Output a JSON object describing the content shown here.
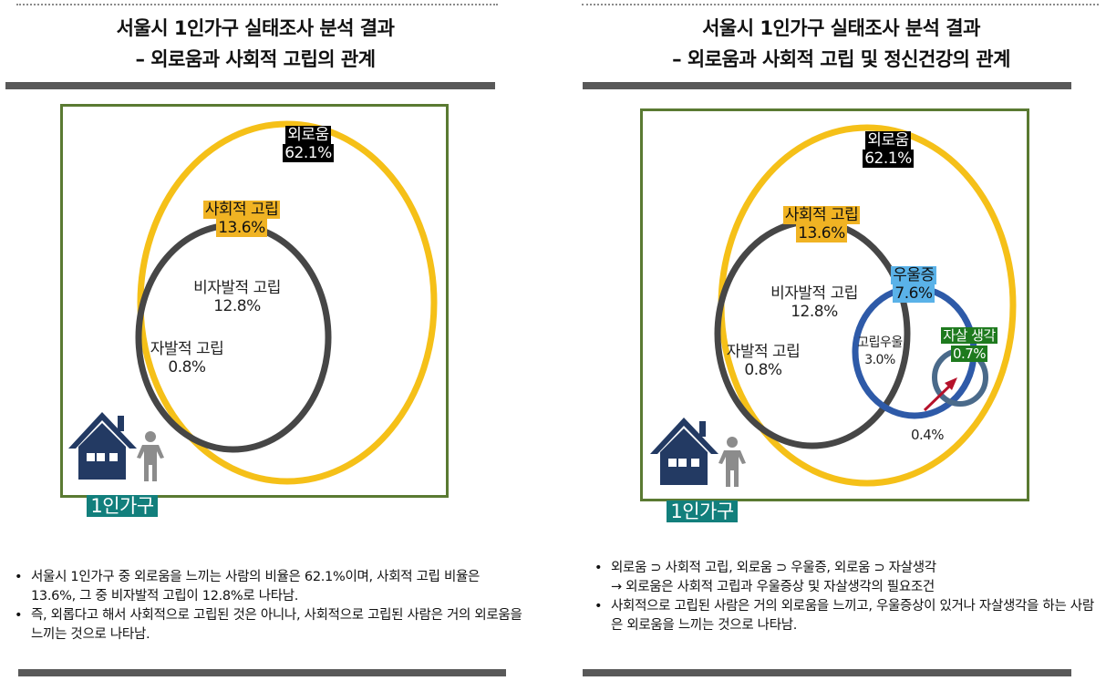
{
  "left": {
    "title_line1": "서울시 1인가구 실태조사 분석 결과",
    "title_line2": "– 외로움과 사회적 고립의 관계",
    "labels": {
      "loneliness_name": "외로움",
      "loneliness_value": "62.1%",
      "social_isolation_name": "사회적 고립",
      "social_isolation_value": "13.6%",
      "involuntary_name": "비자발적 고립",
      "involuntary_value": "12.8%",
      "voluntary_name": "자발적 고립",
      "voluntary_value": "0.8%",
      "household": "1인가구"
    },
    "bullets": [
      "서울시 1인가구 중 외로움을 느끼는 사람의 비율은 62.1%이며, 사회적 고립 비율은 13.6%, 그 중 비자발적 고립이 12.8%로 나타남.",
      "즉, 외롭다고 해서 사회적으로 고립된 것은 아니나, 사회적으로 고립된 사람은 거의 외로움을 느끼는 것으로 나타남."
    ]
  },
  "right": {
    "title_line1": "서울시 1인가구 실태조사 분석 결과",
    "title_line2": "– 외로움과 사회적 고립 및 정신건강의 관계",
    "labels": {
      "loneliness_name": "외로움",
      "loneliness_value": "62.1%",
      "social_isolation_name": "사회적 고립",
      "social_isolation_value": "13.6%",
      "involuntary_name": "비자발적 고립",
      "involuntary_value": "12.8%",
      "voluntary_name": "자발적 고립",
      "voluntary_value": "0.8%",
      "depression_name": "우울증",
      "depression_value": "7.6%",
      "isolated_depression_name": "고립우울",
      "isolated_depression_value": "3.0%",
      "suicide_name": "자살 생각",
      "suicide_value": "0.7%",
      "overlap_value": "0.4%",
      "household": "1인가구"
    },
    "bullet1": "외로움 ⊃ 사회적 고립, 외로움 ⊃ 우울증, 외로움 ⊃ 자살생각",
    "bullet1_sub": "→ 외로움은 사회적 고립과 우울증상 및 자살생각의 필요조건",
    "bullet2": "사회적으로 고립된 사람은 거의 외로움을 느끼고, 우울증상이 있거나 자살생각을 하는 사람은 외로움을 느끼는 것으로 나타남."
  },
  "colors": {
    "loneliness_circle": "#f5c018",
    "isolation_circle": "#464646",
    "depression_circle": "#2e5aa8",
    "suicide_circle": "#4a6a8a",
    "frame": "#5a7a32",
    "house": "#233a63",
    "person": "#8c8c8c",
    "arrow": "#b5122b"
  }
}
